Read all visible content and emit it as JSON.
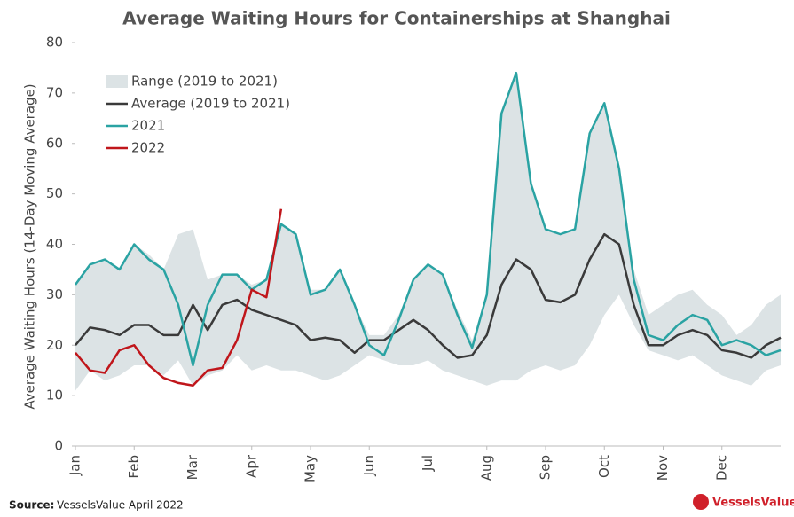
{
  "chart_data": {
    "type": "line",
    "title": "Average Waiting Hours for Containerships at Shanghai",
    "y_label": "Average Waiting Hours (14-Day Moving Average)",
    "source_label": "Source:",
    "source": "VesselsValue April 2022",
    "logo": "VesselsValue",
    "x": [
      0,
      0.25,
      0.5,
      0.75,
      1,
      1.25,
      1.5,
      1.75,
      2,
      2.25,
      2.5,
      2.75,
      3,
      3.25,
      3.5,
      3.75,
      4,
      4.25,
      4.5,
      4.75,
      5,
      5.25,
      5.5,
      5.75,
      6,
      6.25,
      6.5,
      6.75,
      7,
      7.25,
      7.5,
      7.75,
      8,
      8.25,
      8.5,
      8.75,
      9,
      9.25,
      9.5,
      9.75,
      10,
      10.25,
      10.5,
      10.75,
      11,
      11.25,
      11.5,
      11.75,
      12
    ],
    "xlim": [
      0,
      12
    ],
    "xticks": [
      {
        "value": 0,
        "label": "Jan"
      },
      {
        "value": 1,
        "label": "Feb"
      },
      {
        "value": 2,
        "label": "Mar"
      },
      {
        "value": 3,
        "label": "Apr"
      },
      {
        "value": 4,
        "label": "May"
      },
      {
        "value": 5,
        "label": "Jun"
      },
      {
        "value": 6,
        "label": "Jul"
      },
      {
        "value": 7,
        "label": "Aug"
      },
      {
        "value": 8,
        "label": "Sep"
      },
      {
        "value": 9,
        "label": "Oct"
      },
      {
        "value": 10,
        "label": "Nov"
      },
      {
        "value": 11,
        "label": "Dec"
      }
    ],
    "ylim": [
      0,
      80
    ],
    "yticks": [
      0,
      10,
      20,
      30,
      40,
      50,
      60,
      70,
      80
    ],
    "legend": "upper-left",
    "series": [
      {
        "name": "Range (2019 to 2021)",
        "color": "#dce3e5",
        "kind": "range",
        "high": [
          32,
          36,
          37,
          35,
          40,
          38,
          35,
          42,
          43,
          33,
          34,
          34,
          32,
          33,
          44,
          42,
          31,
          31,
          35,
          28,
          22,
          22,
          26,
          33,
          36,
          34,
          27,
          21,
          30,
          66,
          74,
          52,
          43,
          42,
          43,
          62,
          68,
          55,
          35,
          26,
          28,
          30,
          31,
          28,
          26,
          22,
          24,
          28,
          30
        ],
        "low": [
          11,
          15,
          13,
          14,
          16,
          16,
          14,
          17,
          12,
          14,
          15,
          18,
          15,
          16,
          15,
          15,
          14,
          13,
          14,
          16,
          18,
          17,
          16,
          16,
          17,
          15,
          14,
          13,
          12,
          13,
          13,
          15,
          16,
          15,
          16,
          20,
          26,
          30,
          24,
          19,
          18,
          17,
          18,
          16,
          14,
          13,
          12,
          15,
          16
        ]
      },
      {
        "name": "Average (2019 to 2021)",
        "color": "#3a3a3a",
        "values": [
          20,
          23.5,
          23,
          22,
          24,
          24,
          22,
          22,
          28,
          23,
          28,
          29,
          27,
          26,
          25,
          24,
          21,
          21.5,
          21,
          18.5,
          21,
          21,
          23,
          25,
          23,
          20,
          17.5,
          18,
          22,
          32,
          37,
          35,
          29,
          28.5,
          30,
          37,
          42,
          40,
          28,
          20,
          20,
          22,
          23,
          22,
          19,
          18.5,
          17.5,
          20,
          21.5
        ]
      },
      {
        "name": "2021",
        "color": "#2aa3a3",
        "values": [
          32,
          36,
          37,
          35,
          40,
          37,
          35,
          28,
          16,
          28,
          34,
          34,
          31,
          33,
          44,
          42,
          30,
          31,
          35,
          28,
          20,
          18,
          25,
          33,
          36,
          34,
          26,
          19.5,
          30,
          66,
          74,
          52,
          43,
          42,
          43,
          62,
          68,
          55,
          33,
          22,
          21,
          24,
          26,
          25,
          20,
          21,
          20,
          18,
          19
        ]
      },
      {
        "name": "2022",
        "color": "#c0161b",
        "values": [
          18.5,
          15,
          14.5,
          19,
          20,
          16,
          13.5,
          12.5,
          12,
          15,
          15.5,
          21,
          31,
          29.5,
          47,
          null,
          null,
          null,
          null,
          null,
          null,
          null,
          null,
          null,
          null,
          null,
          null,
          null,
          null,
          null,
          null,
          null,
          null,
          null,
          null,
          null,
          null,
          null,
          null,
          null,
          null,
          null,
          null,
          null,
          null,
          null,
          null,
          null,
          null
        ]
      }
    ]
  }
}
